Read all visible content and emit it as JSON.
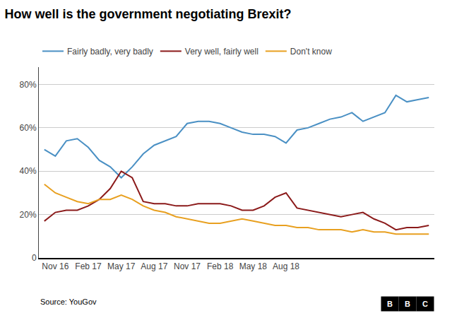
{
  "chart_data": {
    "type": "line",
    "title": "How well is the government negotiating Brexit?",
    "x": [
      0,
      1,
      2,
      3,
      4,
      5,
      6,
      7,
      8,
      9,
      10,
      11,
      12,
      13,
      14,
      15,
      16,
      17,
      18,
      19,
      20,
      21,
      22,
      23,
      24,
      25,
      26,
      27,
      28,
      29,
      30,
      31,
      32,
      33,
      34,
      35
    ],
    "series": [
      {
        "name": "Fairly badly, very badly",
        "color": "#4a90c4",
        "values": [
          50,
          47,
          54,
          55,
          51,
          45,
          42,
          37,
          42,
          48,
          52,
          54,
          56,
          62,
          63,
          63,
          62,
          60,
          58,
          57,
          57,
          56,
          53,
          59,
          60,
          62,
          64,
          65,
          67,
          63,
          65,
          67,
          75,
          72,
          73,
          74
        ]
      },
      {
        "name": "Very well, fairly well",
        "color": "#8b1a1a",
        "values": [
          17,
          21,
          22,
          22,
          24,
          27,
          32,
          40,
          37,
          26,
          25,
          25,
          24,
          24,
          25,
          25,
          25,
          24,
          22,
          22,
          24,
          28,
          30,
          23,
          22,
          21,
          20,
          19,
          20,
          21,
          18,
          16,
          13,
          14,
          14,
          15
        ]
      },
      {
        "name": "Don't know",
        "color": "#e8a020",
        "values": [
          34,
          30,
          28,
          26,
          25,
          27,
          27,
          29,
          27,
          24,
          22,
          21,
          19,
          18,
          17,
          16,
          16,
          17,
          18,
          17,
          16,
          15,
          15,
          14,
          14,
          13,
          13,
          13,
          12,
          13,
          12,
          12,
          11,
          11,
          11,
          11
        ]
      }
    ],
    "xlim": [
      -0.5,
      35.5
    ],
    "xticks": [
      {
        "value": 1,
        "label": "Nov 16"
      },
      {
        "value": 4,
        "label": "Feb 17"
      },
      {
        "value": 7,
        "label": "May 17"
      },
      {
        "value": 10,
        "label": "Aug 17"
      },
      {
        "value": 13,
        "label": "Nov 17"
      },
      {
        "value": 16,
        "label": "Feb 18"
      },
      {
        "value": 19,
        "label": "May 18"
      },
      {
        "value": 22,
        "label": "Aug 18"
      }
    ],
    "ylim": [
      0,
      88
    ],
    "yticks": [
      0,
      {
        "value": 20,
        "label": "20%"
      },
      {
        "value": 40,
        "label": "40%"
      },
      {
        "value": 60,
        "label": "60%"
      },
      {
        "value": 80,
        "label": "80%"
      }
    ],
    "grid": true,
    "legend": "top left",
    "annotations": [
      "Source: YouGov",
      "B",
      "B",
      "C"
    ]
  }
}
